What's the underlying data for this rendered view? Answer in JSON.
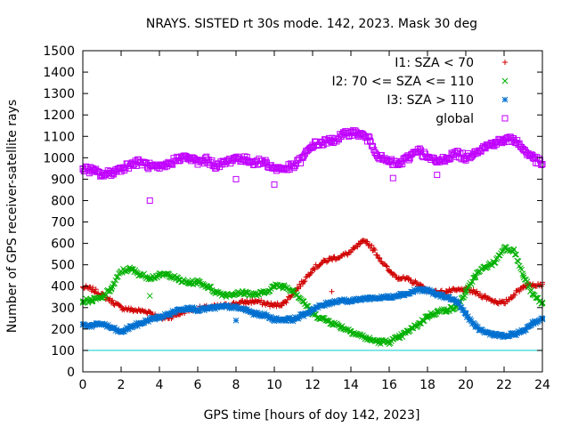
{
  "chart_data": {
    "type": "scatter",
    "title": "NRAYS. SISTED rt 30s mode. 142, 2023. Mask 30 deg",
    "xlabel": "GPS time [hours of doy 142, 2023]",
    "ylabel": "Number of GPS receiver-satellite rays",
    "xlim": [
      0,
      24
    ],
    "ylim": [
      0,
      1500
    ],
    "xticks": [
      "0",
      "2",
      "4",
      "6",
      "8",
      "10",
      "12",
      "14",
      "16",
      "18",
      "20",
      "22",
      "24"
    ],
    "yticks": [
      "0",
      "100",
      "200",
      "300",
      "400",
      "500",
      "600",
      "700",
      "800",
      "900",
      "1000",
      "1100",
      "1200",
      "1300",
      "1400",
      "1500"
    ],
    "grid": false,
    "legend_position": "top-right",
    "reference_line": {
      "y": 100,
      "color": "#00cccc"
    },
    "series": [
      {
        "name": "I1: SZA < 70",
        "color": "#d00000",
        "marker": "plus",
        "x": [
          0,
          0.5,
          1,
          1.5,
          2,
          2.5,
          3,
          3.5,
          4,
          4.5,
          5,
          5.5,
          6,
          6.5,
          7,
          7.5,
          8,
          8.5,
          9,
          9.5,
          10,
          10.5,
          11,
          11.5,
          12,
          12.5,
          13,
          13.5,
          14,
          14.5,
          14.8,
          15.2,
          15.5,
          16,
          16.5,
          17,
          17.5,
          18,
          18.5,
          19,
          19.5,
          20,
          20.5,
          21,
          21.5,
          22,
          22.5,
          23,
          23.5,
          24
        ],
        "y": [
          395,
          385,
          360,
          330,
          300,
          290,
          285,
          280,
          250,
          255,
          270,
          290,
          295,
          300,
          305,
          310,
          320,
          325,
          330,
          320,
          310,
          320,
          370,
          420,
          480,
          510,
          530,
          540,
          560,
          600,
          610,
          570,
          530,
          470,
          440,
          430,
          410,
          380,
          370,
          375,
          380,
          385,
          370,
          350,
          330,
          320,
          360,
          400,
          410,
          410
        ]
      },
      {
        "name": "I2: 70 <= SZA <= 110",
        "color": "#00b000",
        "marker": "cross",
        "x": [
          0,
          0.5,
          1,
          1.5,
          2,
          2.5,
          3,
          3.5,
          4,
          4.5,
          5,
          5.5,
          6,
          6.5,
          7,
          7.5,
          8,
          8.5,
          9,
          9.5,
          10,
          10.5,
          11,
          11.5,
          12,
          12.5,
          13,
          13.5,
          14,
          14.5,
          15,
          15.5,
          16,
          16.5,
          17,
          17.5,
          18,
          18.5,
          19,
          19.5,
          20,
          20.5,
          21,
          21.5,
          22,
          22.5,
          23,
          23.5,
          24
        ],
        "y": [
          330,
          335,
          345,
          390,
          470,
          480,
          455,
          440,
          450,
          455,
          430,
          415,
          420,
          400,
          370,
          360,
          365,
          370,
          360,
          370,
          400,
          400,
          380,
          330,
          270,
          250,
          230,
          210,
          190,
          170,
          150,
          140,
          140,
          160,
          190,
          220,
          260,
          280,
          290,
          300,
          370,
          450,
          490,
          510,
          580,
          570,
          450,
          360,
          320
        ]
      },
      {
        "name": "I3: SZA > 110",
        "color": "#0070d0",
        "marker": "star",
        "x": [
          0,
          0.5,
          1,
          1.5,
          2,
          2.5,
          3,
          3.5,
          4,
          4.5,
          5,
          5.5,
          6,
          6.5,
          7,
          7.5,
          8,
          8.5,
          9,
          9.5,
          10,
          10.5,
          11,
          11.5,
          12,
          12.5,
          13,
          13.5,
          14,
          14.5,
          15,
          15.5,
          16,
          16.5,
          17,
          17.5,
          18,
          18.5,
          19,
          19.5,
          20,
          20.5,
          21,
          21.5,
          22,
          22.5,
          23,
          23.5,
          24
        ],
        "y": [
          220,
          215,
          225,
          205,
          185,
          210,
          225,
          245,
          255,
          270,
          290,
          300,
          290,
          295,
          300,
          305,
          300,
          290,
          270,
          265,
          245,
          245,
          245,
          265,
          290,
          310,
          325,
          335,
          330,
          340,
          345,
          345,
          350,
          360,
          365,
          385,
          380,
          360,
          350,
          330,
          270,
          210,
          185,
          175,
          165,
          175,
          190,
          230,
          245
        ]
      },
      {
        "name": "global",
        "color": "#c000ff",
        "marker": "square",
        "x": [
          0,
          0.5,
          1,
          1.5,
          2,
          2.5,
          3,
          3.5,
          4,
          4.5,
          5,
          5.5,
          6,
          6.5,
          7,
          7.5,
          8,
          8.5,
          9,
          9.5,
          10,
          10.5,
          11,
          11.5,
          12,
          12.5,
          13,
          13.5,
          14,
          14.5,
          15,
          15.5,
          16,
          16.5,
          17,
          17.5,
          18,
          18.5,
          19,
          19.5,
          20,
          20.5,
          21,
          21.5,
          22,
          22.5,
          23,
          23.5,
          24
        ],
        "y": [
          950,
          940,
          920,
          930,
          950,
          970,
          980,
          960,
          950,
          970,
          1000,
          1000,
          980,
          990,
          960,
          980,
          1000,
          990,
          980,
          980,
          950,
          950,
          960,
          1000,
          1060,
          1070,
          1080,
          1100,
          1120,
          1110,
          1080,
          1000,
          980,
          970,
          1000,
          1040,
          1000,
          980,
          1000,
          1020,
          1000,
          1030,
          1050,
          1070,
          1080,
          1090,
          1040,
          1000,
          970
        ]
      }
    ],
    "outliers": [
      {
        "series": "global",
        "x": 3.5,
        "y": 800
      },
      {
        "series": "global",
        "x": 8,
        "y": 900
      },
      {
        "series": "global",
        "x": 16.2,
        "y": 905
      },
      {
        "series": "global",
        "x": 18.5,
        "y": 920
      },
      {
        "series": "global",
        "x": 10,
        "y": 875
      },
      {
        "series": "I2: 70 <= SZA <= 110",
        "x": 3.5,
        "y": 355
      },
      {
        "series": "I3: SZA > 110",
        "x": 8,
        "y": 240
      },
      {
        "series": "I1: SZA < 70",
        "x": 13,
        "y": 375
      }
    ]
  }
}
